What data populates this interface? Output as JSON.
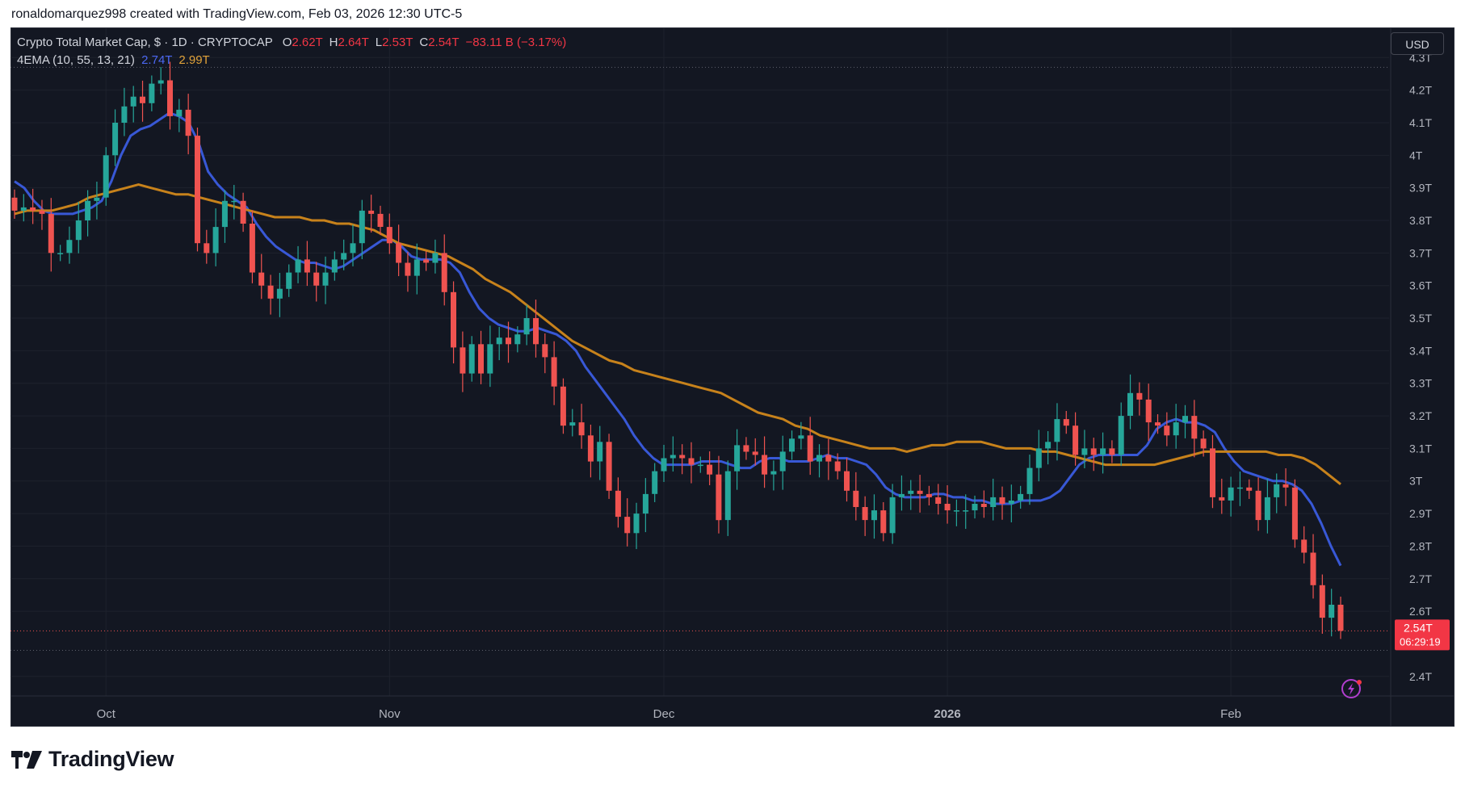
{
  "credit": "ronaldomarquez998 created with TradingView.com, Feb 03, 2026 12:30 UTC-5",
  "header": {
    "symbol": "Crypto Total Market Cap, $ · 1D · CRYPTOCAP",
    "o_label": "O",
    "o": "2.62T",
    "h_label": "H",
    "h": "2.64T",
    "l_label": "L",
    "l": "2.53T",
    "c_label": "C",
    "c": "2.54T",
    "change": "−83.11 B (−3.17%)"
  },
  "indicator": {
    "name": "4EMA (10, 55, 13, 21)",
    "ema_fast": "2.74T",
    "ema_slow": "2.99T"
  },
  "currency_button": "USD",
  "last_price": {
    "value": "2.54T",
    "countdown": "06:29:19"
  },
  "brand": "TradingView",
  "colors": {
    "bg": "#131722",
    "up": "#26a69a",
    "down": "#ef5350",
    "ema_fast": "#3858d6",
    "ema_slow": "#c7821b",
    "grid": "#1e222d",
    "text": "#b2b5be"
  },
  "chart_data": {
    "type": "candlestick",
    "title": "Crypto Total Market Cap, $ · 1D · CRYPTOCAP",
    "y_ticks": [
      "4.3T",
      "4.2T",
      "4.1T",
      "4T",
      "3.9T",
      "3.8T",
      "3.7T",
      "3.6T",
      "3.5T",
      "3.4T",
      "3.3T",
      "3.2T",
      "3.1T",
      "3T",
      "2.9T",
      "2.8T",
      "2.7T",
      "2.6T",
      "2.4T"
    ],
    "y_tick_values": [
      4.3,
      4.2,
      4.1,
      4.0,
      3.9,
      3.8,
      3.7,
      3.6,
      3.5,
      3.4,
      3.3,
      3.2,
      3.1,
      3.0,
      2.9,
      2.8,
      2.7,
      2.6,
      2.4
    ],
    "x_labels": [
      {
        "label": "Oct",
        "date": "2025-10-01"
      },
      {
        "label": "Nov",
        "date": "2025-11-01"
      },
      {
        "label": "Dec",
        "date": "2025-12-01"
      },
      {
        "label": "2026",
        "date": "2026-01-01"
      },
      {
        "label": "Feb",
        "date": "2026-02-01"
      }
    ],
    "x_start": "2025-09-21",
    "ylim": [
      2.34,
      4.39
    ],
    "grid": true,
    "close": [
      3.83,
      3.84,
      3.83,
      3.82,
      3.7,
      3.7,
      3.74,
      3.8,
      3.86,
      3.87,
      4.0,
      4.1,
      4.15,
      4.18,
      4.16,
      4.22,
      4.23,
      4.12,
      4.14,
      4.06,
      3.73,
      3.7,
      3.78,
      3.86,
      3.86,
      3.79,
      3.64,
      3.6,
      3.56,
      3.59,
      3.64,
      3.68,
      3.64,
      3.6,
      3.64,
      3.68,
      3.7,
      3.73,
      3.83,
      3.82,
      3.78,
      3.73,
      3.67,
      3.63,
      3.68,
      3.67,
      3.7,
      3.58,
      3.41,
      3.33,
      3.42,
      3.33,
      3.42,
      3.44,
      3.42,
      3.45,
      3.5,
      3.42,
      3.38,
      3.29,
      3.17,
      3.18,
      3.14,
      3.06,
      3.12,
      2.97,
      2.89,
      2.84,
      2.9,
      2.96,
      3.03,
      3.07,
      3.08,
      3.07,
      3.05,
      3.05,
      3.02,
      2.88,
      3.03,
      3.11,
      3.09,
      3.08,
      3.02,
      3.03,
      3.09,
      3.13,
      3.14,
      3.06,
      3.08,
      3.06,
      3.03,
      2.97,
      2.92,
      2.88,
      2.91,
      2.84,
      2.95,
      2.96,
      2.97,
      2.96,
      2.95,
      2.93,
      2.91,
      2.91,
      2.91,
      2.93,
      2.92,
      2.95,
      2.93,
      2.94,
      2.96,
      3.04,
      3.1,
      3.12,
      3.19,
      3.17,
      3.08,
      3.1,
      3.08,
      3.1,
      3.08,
      3.2,
      3.27,
      3.25,
      3.18,
      3.17,
      3.14,
      3.18,
      3.2,
      3.13,
      3.1,
      2.95,
      2.94,
      2.98,
      2.98,
      2.97,
      2.88,
      2.95,
      2.99,
      2.98,
      2.82,
      2.78,
      2.68,
      2.58,
      2.62,
      2.54
    ],
    "candles_open_high_low_approx": "open = previous close",
    "series": [
      {
        "name": "EMA 2.74T",
        "color": "#3858d6",
        "value_last": 2.74,
        "values": [
          3.92,
          3.9,
          3.86,
          3.83,
          3.82,
          3.82,
          3.82,
          3.83,
          3.84,
          3.86,
          3.92,
          4.0,
          4.06,
          4.08,
          4.09,
          4.11,
          4.13,
          4.12,
          4.1,
          4.04,
          3.95,
          3.91,
          3.88,
          3.86,
          3.84,
          3.79,
          3.75,
          3.72,
          3.7,
          3.68,
          3.67,
          3.67,
          3.66,
          3.65,
          3.66,
          3.68,
          3.7,
          3.72,
          3.74,
          3.74,
          3.72,
          3.69,
          3.68,
          3.68,
          3.68,
          3.67,
          3.64,
          3.58,
          3.53,
          3.5,
          3.48,
          3.47,
          3.46,
          3.46,
          3.47,
          3.46,
          3.45,
          3.43,
          3.4,
          3.35,
          3.31,
          3.27,
          3.23,
          3.19,
          3.14,
          3.1,
          3.07,
          3.05,
          3.05,
          3.05,
          3.05,
          3.06,
          3.06,
          3.06,
          3.05,
          3.04,
          3.04,
          3.06,
          3.07,
          3.07,
          3.06,
          3.06,
          3.06,
          3.07,
          3.08,
          3.07,
          3.07,
          3.06,
          3.05,
          3.02,
          2.98,
          2.96,
          2.95,
          2.95,
          2.95,
          2.96,
          2.96,
          2.95,
          2.95,
          2.94,
          2.94,
          2.93,
          2.93,
          2.93,
          2.94,
          2.94,
          2.94,
          2.95,
          2.97,
          3.01,
          3.05,
          3.07,
          3.08,
          3.08,
          3.08,
          3.08,
          3.08,
          3.11,
          3.16,
          3.18,
          3.19,
          3.18,
          3.18,
          3.17,
          3.15,
          3.1,
          3.06,
          3.03,
          3.02,
          3.01,
          3.0,
          3.0,
          2.99,
          2.97,
          2.93,
          2.87,
          2.8,
          2.74
        ]
      },
      {
        "name": "EMA 2.99T",
        "color": "#c7821b",
        "value_last": 2.99,
        "values": [
          3.82,
          3.83,
          3.83,
          3.83,
          3.84,
          3.85,
          3.87,
          3.88,
          3.89,
          3.9,
          3.91,
          3.9,
          3.89,
          3.88,
          3.88,
          3.87,
          3.86,
          3.85,
          3.84,
          3.83,
          3.82,
          3.81,
          3.81,
          3.81,
          3.8,
          3.8,
          3.79,
          3.79,
          3.78,
          3.77,
          3.75,
          3.73,
          3.72,
          3.71,
          3.7,
          3.69,
          3.67,
          3.65,
          3.62,
          3.6,
          3.58,
          3.55,
          3.52,
          3.49,
          3.46,
          3.43,
          3.41,
          3.39,
          3.37,
          3.36,
          3.34,
          3.33,
          3.32,
          3.31,
          3.3,
          3.29,
          3.28,
          3.27,
          3.25,
          3.23,
          3.21,
          3.2,
          3.19,
          3.17,
          3.16,
          3.14,
          3.13,
          3.12,
          3.11,
          3.1,
          3.1,
          3.1,
          3.09,
          3.1,
          3.11,
          3.11,
          3.12,
          3.12,
          3.12,
          3.11,
          3.1,
          3.1,
          3.1,
          3.09,
          3.09,
          3.08,
          3.07,
          3.06,
          3.05,
          3.05,
          3.05,
          3.05,
          3.05,
          3.06,
          3.07,
          3.08,
          3.09,
          3.09,
          3.09,
          3.09,
          3.09,
          3.09,
          3.08,
          3.08,
          3.07,
          3.05,
          3.02,
          2.99
        ]
      }
    ]
  }
}
